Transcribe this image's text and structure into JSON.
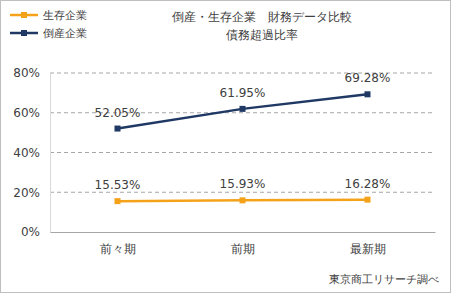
{
  "chart_data": {
    "type": "line",
    "title": "倒産・生存企業　財務データ比較",
    "subtitle": "債務超過比率",
    "annotations": [
      "東京商工リサーチ調べ"
    ],
    "categories": [
      "前々期",
      "前期",
      "最新期"
    ],
    "series": [
      {
        "name": "生存企業",
        "color": "#f5a21b",
        "marker": "square",
        "values": [
          15.53,
          15.93,
          16.28
        ],
        "value_labels": [
          "15.53%",
          "15.93%",
          "16.28%"
        ]
      },
      {
        "name": "倒産企業",
        "color": "#1f3864",
        "marker": "square",
        "values": [
          52.05,
          61.95,
          69.28
        ],
        "value_labels": [
          "52.05%",
          "61.95%",
          "69.28%"
        ]
      }
    ],
    "ylim": [
      0,
      80
    ],
    "yticks": [
      {
        "value": 0,
        "label": "0%"
      },
      {
        "value": 20,
        "label": "20%"
      },
      {
        "value": 40,
        "label": "40%"
      },
      {
        "value": 60,
        "label": "60%"
      },
      {
        "value": 80,
        "label": "80%"
      }
    ],
    "grid": true,
    "legend": "top-left",
    "data_labels": true
  }
}
